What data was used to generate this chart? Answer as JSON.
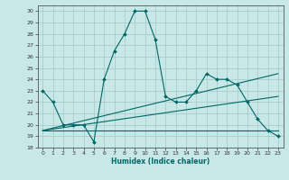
{
  "title": "",
  "xlabel": "Humidex (Indice chaleur)",
  "ylabel": "",
  "bg_color": "#c8e8e8",
  "grid_color": "#aacccc",
  "line_color": "#006666",
  "ylim": [
    18,
    30.5
  ],
  "xlim": [
    -0.5,
    23.5
  ],
  "yticks": [
    18,
    19,
    20,
    21,
    22,
    23,
    24,
    25,
    26,
    27,
    28,
    29,
    30
  ],
  "xticks": [
    0,
    1,
    2,
    3,
    4,
    5,
    6,
    7,
    8,
    9,
    10,
    11,
    12,
    13,
    14,
    15,
    16,
    17,
    18,
    19,
    20,
    21,
    22,
    23
  ],
  "series": [
    {
      "x": [
        0,
        1,
        2,
        3,
        4,
        5,
        6,
        7,
        8,
        9,
        10,
        11,
        12,
        13,
        14,
        15,
        16,
        17,
        18,
        19,
        20,
        21,
        22,
        23
      ],
      "y": [
        19.5,
        19.5,
        19.5,
        19.5,
        19.5,
        19.5,
        19.5,
        19.5,
        19.5,
        19.5,
        19.5,
        19.5,
        19.5,
        19.5,
        19.5,
        19.5,
        19.5,
        19.5,
        19.5,
        19.5,
        19.5,
        19.5,
        19.5,
        19.5
      ],
      "marker": false
    },
    {
      "x": [
        0,
        23
      ],
      "y": [
        19.5,
        22.5
      ],
      "marker": false
    },
    {
      "x": [
        0,
        23
      ],
      "y": [
        19.5,
        24.5
      ],
      "marker": false
    },
    {
      "x": [
        0,
        1,
        2,
        3,
        4,
        5,
        6,
        7,
        8,
        9,
        10,
        11,
        12,
        13,
        14,
        15,
        16,
        17,
        18,
        19,
        20,
        21,
        22,
        23
      ],
      "y": [
        23,
        22,
        20,
        20,
        20,
        18.5,
        24,
        26.5,
        28,
        30,
        30,
        27.5,
        22.5,
        22,
        22,
        23,
        24.5,
        24,
        24,
        23.5,
        22,
        20.5,
        19.5,
        19
      ],
      "marker": true
    }
  ]
}
